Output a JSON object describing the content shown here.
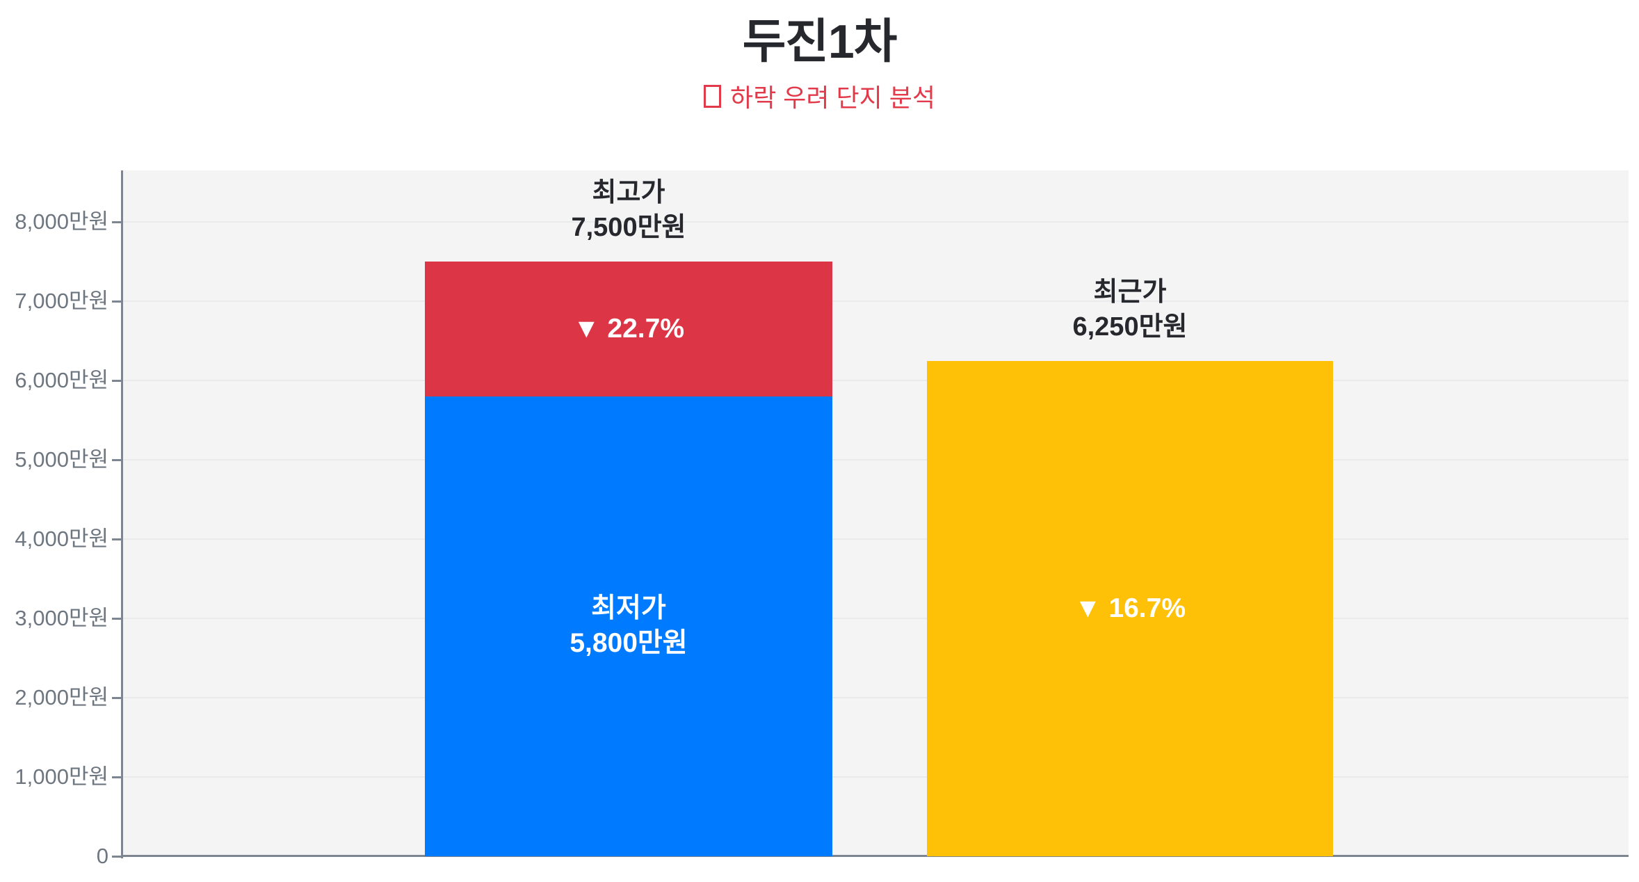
{
  "page": {
    "background": "#ffffff"
  },
  "header": {
    "title": "두진1차",
    "title_color": "#26282e",
    "subtitle_marker": "□",
    "subtitle": "하락 우려 단지 분석",
    "subtitle_color": "#e13a4b"
  },
  "chart_data": {
    "type": "bar",
    "stacked": true,
    "title": "두진1차",
    "subtitle": "□ 하락 우려 단지 분석",
    "unit": "만원",
    "ylim": [
      0,
      8650
    ],
    "grid": true,
    "legend": "none",
    "plot_background": "#f4f4f5",
    "y_ticks": [
      {
        "value": 0,
        "label": "0"
      },
      {
        "value": 1000,
        "label": "1,000만원"
      },
      {
        "value": 2000,
        "label": "2,000만원"
      },
      {
        "value": 3000,
        "label": "3,000만원"
      },
      {
        "value": 4000,
        "label": "4,000만원"
      },
      {
        "value": 5000,
        "label": "5,000만원"
      },
      {
        "value": 6000,
        "label": "6,000만원"
      },
      {
        "value": 7000,
        "label": "7,000만원"
      },
      {
        "value": 8000,
        "label": "8,000만원"
      }
    ],
    "bars": [
      {
        "name": "max-vs-min-price-bar",
        "total_value": 7500,
        "top_label_lines": [
          "최고가",
          "7,500만원"
        ],
        "segments": [
          {
            "name": "lowest-price",
            "from": 0,
            "to": 5800,
            "value": 5800,
            "color": "#007bff",
            "label_lines": [
              "최저가",
              "5,800만원"
            ],
            "label_color": "#ffffff"
          },
          {
            "name": "drop-from-peak",
            "from": 5800,
            "to": 7500,
            "value": 1700,
            "color": "#dc3545",
            "label_lines": [
              "▼ 22.7%"
            ],
            "label_color": "#ffffff"
          }
        ]
      },
      {
        "name": "recent-price-bar",
        "total_value": 6250,
        "top_label_lines": [
          "최근가",
          "6,250만원"
        ],
        "segments": [
          {
            "name": "recent-price",
            "from": 0,
            "to": 6250,
            "value": 6250,
            "color": "#ffc107",
            "label_lines": [
              "▼ 16.7%"
            ],
            "label_color": "#ffffff"
          }
        ]
      }
    ]
  }
}
